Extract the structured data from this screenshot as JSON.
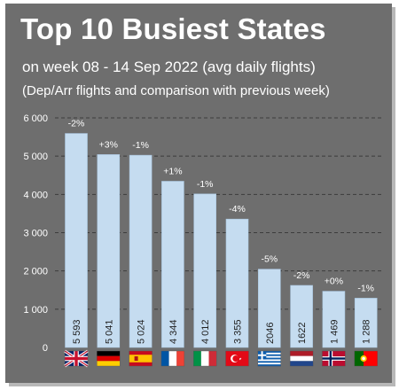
{
  "title": "Top 10 Busiest States",
  "subtitle": "on week 08 - 14 Sep 2022 (avg daily flights)",
  "subtitle2": "(Dep/Arr flights and comparison with previous week)",
  "colors": {
    "background": "#6e6e6e",
    "bar": "#c5dcf0",
    "bar_stroke": "#a9c6e0",
    "grid": "#3c3c3c"
  },
  "chart_data": {
    "type": "bar",
    "categories": [
      "United Kingdom",
      "Germany",
      "Spain",
      "France",
      "Italy",
      "Türkiye",
      "Greece",
      "Netherlands",
      "Norway",
      "Portugal"
    ],
    "values": [
      5593,
      5041,
      5024,
      4344,
      4012,
      3355,
      2046,
      1622,
      1469,
      1288
    ],
    "value_labels": [
      "5 593",
      "5 041",
      "5 024",
      "4 344",
      "4 012",
      "3 355",
      "2046",
      "1622",
      "1 469",
      "1 288"
    ],
    "change_labels": [
      "-2%",
      "+3%",
      "-1%",
      "+1%",
      "-1%",
      "-4%",
      "-5%",
      "-2%",
      "+0%",
      "-1%"
    ],
    "y_ticks": [
      0,
      1000,
      2000,
      3000,
      4000,
      5000,
      6000
    ],
    "y_tick_labels": [
      "0",
      "1 000",
      "2 000",
      "3 000",
      "4 000",
      "5 000",
      "6 000"
    ],
    "ylim": [
      0,
      6000
    ],
    "grid": true,
    "legend": "none",
    "x_axis": "country flags",
    "flags": [
      "flag-uk-icon",
      "flag-germany-icon",
      "flag-spain-icon",
      "flag-france-icon",
      "flag-italy-icon",
      "flag-turkey-icon",
      "flag-greece-icon",
      "flag-netherlands-icon",
      "flag-norway-icon",
      "flag-portugal-icon"
    ]
  }
}
